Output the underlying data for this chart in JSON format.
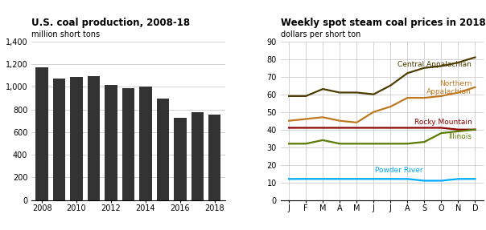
{
  "bar_years": [
    2008,
    2009,
    2010,
    2011,
    2012,
    2013,
    2014,
    2015,
    2016,
    2017,
    2018
  ],
  "bar_values": [
    1172,
    1075,
    1085,
    1095,
    1016,
    985,
    1000,
    897,
    728,
    774,
    756
  ],
  "bar_color": "#333333",
  "bar_title": "U.S. coal production, 2008-18",
  "bar_ylabel": "million short tons",
  "bar_ylim": [
    0,
    1400
  ],
  "bar_yticks": [
    0,
    200,
    400,
    600,
    800,
    1000,
    1200,
    1400
  ],
  "bar_xticks": [
    2008,
    2010,
    2012,
    2014,
    2016,
    2018
  ],
  "line_title": "Weekly spot steam coal prices in 2018",
  "line_ylabel": "dollars per short ton",
  "line_ylim": [
    0,
    90
  ],
  "line_yticks": [
    0,
    10,
    20,
    30,
    40,
    50,
    60,
    70,
    80,
    90
  ],
  "line_months": [
    "J",
    "F",
    "M",
    "A",
    "M",
    "J",
    "J",
    "A",
    "S",
    "O",
    "N",
    "D"
  ],
  "central_appalachian": [
    59,
    59,
    63,
    61,
    61,
    60,
    65,
    72,
    75,
    76,
    78,
    81
  ],
  "central_appalachian_color": "#4d3b00",
  "central_appalachian_label": "Central Appalachian",
  "northern_appalachian": [
    45,
    46,
    47,
    45,
    44,
    50,
    53,
    58,
    58,
    59,
    61,
    64
  ],
  "northern_appalachian_color": "#c07820",
  "northern_appalachian_label": "Northern\nAppalachian",
  "rocky_mountain": [
    41,
    41,
    41,
    41,
    41,
    41,
    41,
    41,
    41,
    41,
    40,
    40
  ],
  "rocky_mountain_color": "#8b0000",
  "rocky_mountain_label": "Rocky Mountain",
  "illinois": [
    32,
    32,
    34,
    32,
    32,
    32,
    32,
    32,
    33,
    38,
    39,
    40
  ],
  "illinois_color": "#5a7a00",
  "illinois_label": "Illinois",
  "powder_river": [
    12,
    12,
    12,
    12,
    12,
    12,
    12,
    12,
    11,
    11,
    12,
    12
  ],
  "powder_river_color": "#00aaff",
  "powder_river_label": "Powder River",
  "bg_color": "#ffffff",
  "grid_color": "#cccccc",
  "title_fontsize": 8.5,
  "subtitle_fontsize": 7,
  "tick_fontsize": 7,
  "label_fontsize": 6.5
}
